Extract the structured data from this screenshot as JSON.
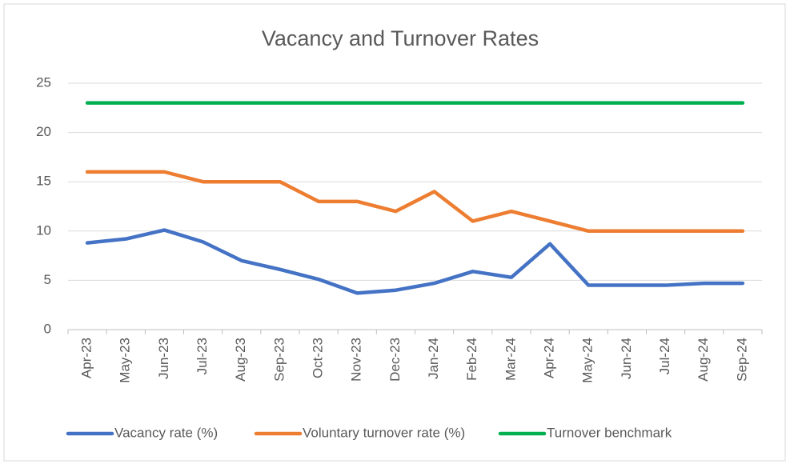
{
  "chart_data": {
    "type": "line",
    "title": "Vacancy and Turnover Rates",
    "categories": [
      "Apr-23",
      "May-23",
      "Jun-23",
      "Jul-23",
      "Aug-23",
      "Sep-23",
      "Oct-23",
      "Nov-23",
      "Dec-23",
      "Jan-24",
      "Feb-24",
      "Mar-24",
      "Apr-24",
      "May-24",
      "Jun-24",
      "Jul-24",
      "Aug-24",
      "Sep-24"
    ],
    "series": [
      {
        "name": "Vacancy rate (%)",
        "color": "#4472c4",
        "values": [
          8.8,
          9.2,
          10.1,
          8.9,
          7.0,
          6.1,
          5.1,
          3.7,
          4.0,
          4.7,
          5.9,
          5.3,
          8.7,
          4.5,
          4.5,
          4.5,
          4.7,
          4.7
        ]
      },
      {
        "name": "Voluntary turnover rate (%)",
        "color": "#ed7d31",
        "values": [
          16,
          16,
          16,
          15,
          15,
          15,
          13,
          13,
          12,
          14,
          11,
          12,
          11,
          10,
          10,
          10,
          10,
          10
        ]
      },
      {
        "name": "Turnover benchmark",
        "color": "#00b050",
        "values": [
          23,
          23,
          23,
          23,
          23,
          23,
          23,
          23,
          23,
          23,
          23,
          23,
          23,
          23,
          23,
          23,
          23,
          23
        ]
      }
    ],
    "ylim": [
      0,
      25
    ],
    "yticks": [
      0,
      5,
      10,
      15,
      20,
      25
    ],
    "grid": true,
    "legend": "bottom"
  }
}
